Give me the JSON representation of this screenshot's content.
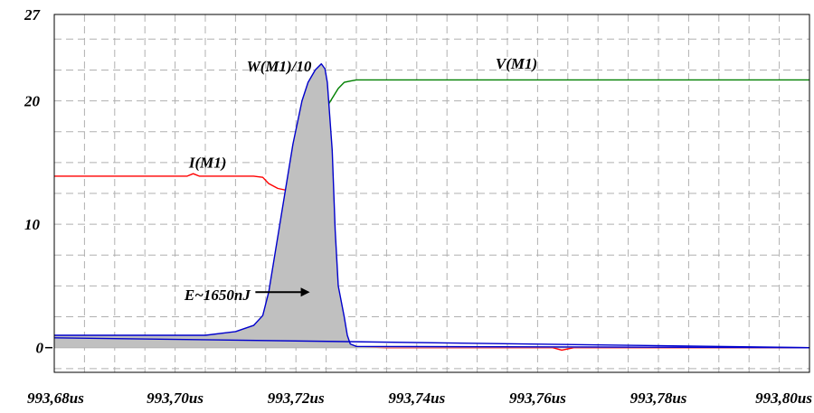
{
  "chart_data": {
    "type": "line",
    "xlim": [
      993.68,
      993.805
    ],
    "ylim": [
      -2,
      27
    ],
    "x_ticks": [
      {
        "value": 993.68,
        "label": "993,68us"
      },
      {
        "value": 993.7,
        "label": "993,70us"
      },
      {
        "value": 993.72,
        "label": "993,72us"
      },
      {
        "value": 993.74,
        "label": "993,74us"
      },
      {
        "value": 993.76,
        "label": "993,76us"
      },
      {
        "value": 993.78,
        "label": "993,78us"
      },
      {
        "value": 993.8,
        "label": "993,80us"
      }
    ],
    "y_ticks": [
      {
        "value": 27,
        "label": "27"
      },
      {
        "value": 20,
        "label": "20"
      },
      {
        "value": 10,
        "label": "10"
      },
      {
        "value": 0,
        "label": "0"
      }
    ],
    "grid": true,
    "series": [
      {
        "name": "V(M1)",
        "color": "#008000",
        "x": [
          993.68,
          993.705,
          993.712,
          993.715,
          993.717,
          993.7185,
          993.7195,
          993.721,
          993.7225,
          993.724,
          993.7255,
          993.727,
          993.728,
          993.729,
          993.73,
          993.805
        ],
        "y": [
          0.7,
          0.75,
          0.9,
          1.3,
          2.2,
          5.5,
          9.5,
          12.5,
          15.3,
          18.0,
          19.8,
          21.0,
          21.5,
          21.6,
          21.7,
          21.7
        ]
      },
      {
        "name": "I(M1)",
        "color": "#ff0000",
        "x": [
          993.68,
          993.702,
          993.703,
          993.704,
          993.713,
          993.7145,
          993.7155,
          993.717,
          993.719,
          993.7205,
          993.7215,
          993.723,
          993.724,
          993.7248,
          993.7255,
          993.726,
          993.7265,
          993.727,
          993.7275,
          993.728,
          993.7285,
          993.729,
          993.735,
          993.7625,
          993.764,
          993.766,
          993.78,
          993.805
        ],
        "y": [
          13.9,
          13.9,
          14.1,
          13.9,
          13.9,
          13.8,
          13.3,
          12.9,
          12.7,
          12.4,
          12.1,
          11.5,
          10.5,
          8.9,
          6.8,
          4.8,
          3.0,
          1.9,
          1.3,
          0.8,
          0.3,
          0.1,
          0.0,
          0.0,
          -0.2,
          0.0,
          0.0,
          0.0
        ]
      },
      {
        "name": "W(M1)/10",
        "color": "#0000cc",
        "fill": "#c0c0c0",
        "x": [
          993.68,
          993.705,
          993.71,
          993.713,
          993.7145,
          993.7155,
          993.7165,
          993.7175,
          993.7185,
          993.7195,
          993.721,
          993.722,
          993.7232,
          993.7242,
          993.7248,
          993.7252,
          993.726,
          993.7265,
          993.727,
          993.728,
          993.7285,
          993.729,
          993.73,
          993.805
        ],
        "y": [
          1.0,
          1.0,
          1.3,
          1.8,
          2.6,
          4.5,
          7.5,
          10.5,
          13.5,
          16.5,
          20.0,
          21.5,
          22.5,
          23.0,
          22.6,
          21.5,
          16.0,
          9.5,
          5.0,
          2.5,
          1.0,
          0.3,
          0.1,
          0.0
        ]
      },
      {
        "name": "",
        "color": "#0000cc",
        "x": [
          993.68,
          993.805
        ],
        "y": [
          0.8,
          0.0
        ]
      }
    ],
    "series_labels": [
      {
        "text": "V(M1)",
        "x": 993.7565,
        "y": 22.6
      },
      {
        "text": "W(M1)/10",
        "x": 993.7172,
        "y": 22.4
      },
      {
        "text": "I(M1)",
        "x": 993.7054,
        "y": 14.6
      }
    ],
    "annotations": [
      {
        "text": "E~1650nJ",
        "x": 993.707,
        "y": 4.3,
        "arrow_to": [
          993.7223,
          4.5
        ]
      }
    ]
  }
}
